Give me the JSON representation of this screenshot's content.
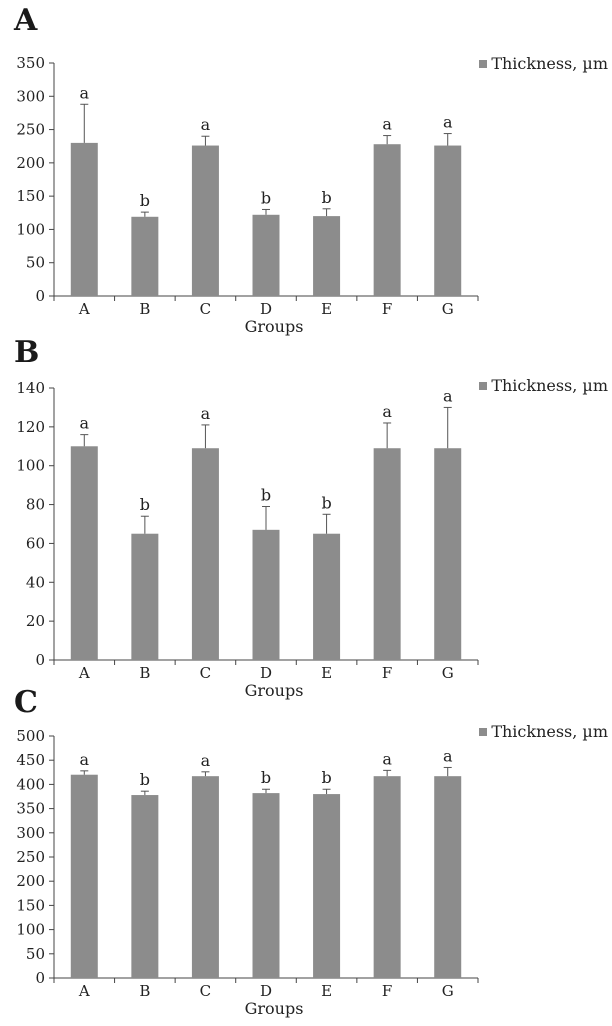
{
  "chart_data": [
    {
      "type": "bar",
      "panel": "A",
      "title": "",
      "xlabel": "Groups",
      "ylabel": "",
      "ylim": [
        0,
        350
      ],
      "yticks": [
        0,
        50,
        100,
        150,
        200,
        250,
        300,
        350
      ],
      "categories": [
        "A",
        "B",
        "C",
        "D",
        "E",
        "F",
        "G"
      ],
      "legend": "Thickness, µm",
      "legend_position": "top-right",
      "series": [
        {
          "name": "Thickness, µm",
          "color": "#8c8c8c",
          "values": [
            230,
            119,
            226,
            122,
            120,
            228,
            226
          ],
          "errors": [
            58,
            7,
            14,
            8,
            11,
            13,
            18
          ],
          "labels": [
            "a",
            "b",
            "a",
            "b",
            "b",
            "a",
            "a"
          ]
        }
      ]
    },
    {
      "type": "bar",
      "panel": "B",
      "title": "",
      "xlabel": "Groups",
      "ylabel": "",
      "ylim": [
        0,
        140
      ],
      "yticks": [
        0,
        20,
        40,
        60,
        80,
        100,
        120,
        140
      ],
      "categories": [
        "A",
        "B",
        "C",
        "D",
        "E",
        "F",
        "G"
      ],
      "legend": "Thickness, µm",
      "legend_position": "top-right",
      "series": [
        {
          "name": "Thickness, µm",
          "color": "#8c8c8c",
          "values": [
            110,
            65,
            109,
            67,
            65,
            109,
            109
          ],
          "errors": [
            6,
            9,
            12,
            12,
            10,
            13,
            21
          ],
          "labels": [
            "a",
            "b",
            "a",
            "b",
            "b",
            "a",
            "a"
          ]
        }
      ]
    },
    {
      "type": "bar",
      "panel": "C",
      "title": "",
      "xlabel": "Groups",
      "ylabel": "",
      "ylim": [
        0,
        500
      ],
      "yticks": [
        0,
        50,
        100,
        150,
        200,
        250,
        300,
        350,
        400,
        450,
        500
      ],
      "categories": [
        "A",
        "B",
        "C",
        "D",
        "E",
        "F",
        "G"
      ],
      "legend": "Thickness, µm",
      "legend_position": "top-right",
      "series": [
        {
          "name": "Thickness, µm",
          "color": "#8c8c8c",
          "values": [
            420,
            378,
            417,
            382,
            380,
            417,
            417
          ],
          "errors": [
            8,
            8,
            9,
            8,
            10,
            12,
            18
          ],
          "labels": [
            "a",
            "b",
            "a",
            "b",
            "b",
            "a",
            "a"
          ]
        }
      ]
    }
  ]
}
